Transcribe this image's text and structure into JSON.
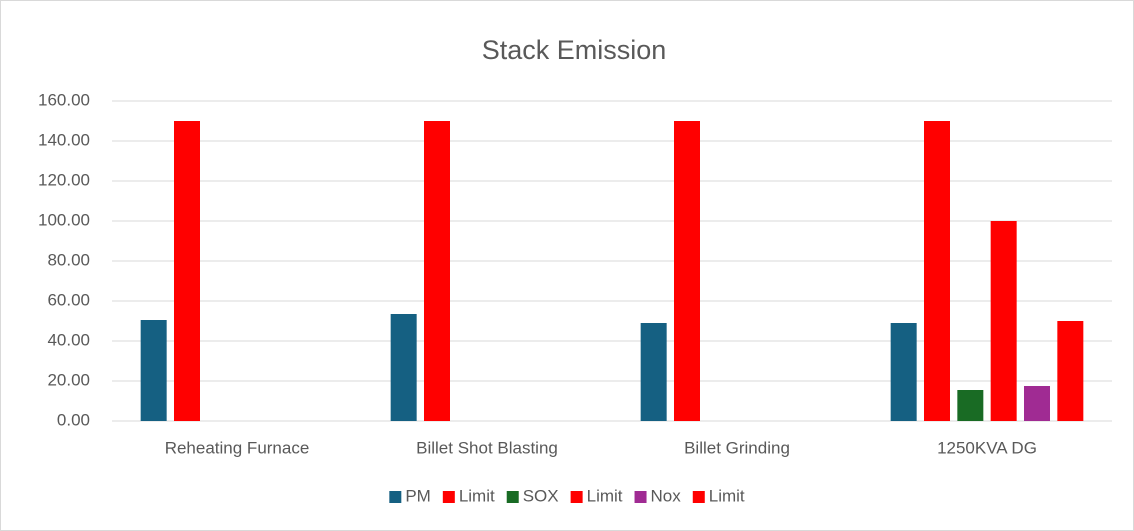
{
  "chart_data": {
    "type": "bar",
    "title": "Stack Emission",
    "categories": [
      "Reheating Furnace",
      "Billet Shot Blasting",
      "Billet Grinding",
      "1250KVA DG"
    ],
    "series": [
      {
        "name": "PM",
        "color": "#156082",
        "values": [
          50.5,
          53.5,
          49,
          49
        ]
      },
      {
        "name": "Limit",
        "color": "#ff0000",
        "values": [
          150,
          150,
          150,
          150
        ]
      },
      {
        "name": "SOX",
        "color": "#196b24",
        "values": [
          null,
          null,
          null,
          15.5
        ]
      },
      {
        "name": "Limit",
        "color": "#ff0000",
        "values": [
          null,
          null,
          null,
          100
        ]
      },
      {
        "name": "Nox",
        "color": "#a02b93",
        "values": [
          null,
          null,
          null,
          17.5
        ]
      },
      {
        "name": "Limit",
        "color": "#ff0000",
        "values": [
          null,
          null,
          null,
          50
        ]
      }
    ],
    "ylim": [
      0,
      160
    ],
    "yticks": [
      {
        "value": 0,
        "label": "0.00"
      },
      {
        "value": 20,
        "label": "20.00"
      },
      {
        "value": 40,
        "label": "40.00"
      },
      {
        "value": 60,
        "label": "60.00"
      },
      {
        "value": 80,
        "label": "80.00"
      },
      {
        "value": 100,
        "label": "100.00"
      },
      {
        "value": 120,
        "label": "120.00"
      },
      {
        "value": 140,
        "label": "140.00"
      },
      {
        "value": 160,
        "label": "160.00"
      }
    ],
    "grid": true,
    "legend": "bottom"
  }
}
